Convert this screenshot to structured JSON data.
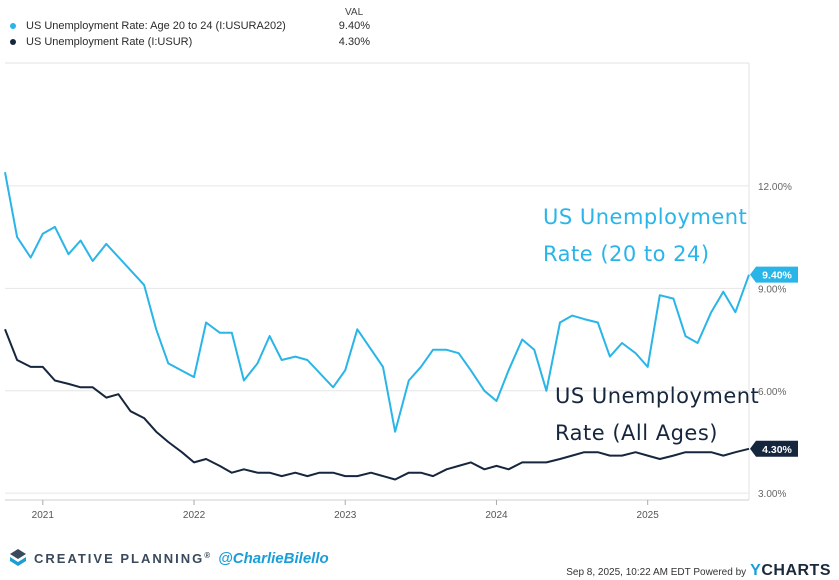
{
  "legend": {
    "header": "VAL",
    "series": [
      {
        "label": "US Unemployment Rate: Age 20 to 24 (I:USURA202)",
        "value": "9.40%",
        "color": "#29b5e8"
      },
      {
        "label": "US Unemployment Rate (I:USUR)",
        "value": "4.30%",
        "color": "#16263d"
      }
    ]
  },
  "chart_data": {
    "type": "line",
    "x_ticks": [
      "2021",
      "2022",
      "2023",
      "2024",
      "2025"
    ],
    "y_ticks": [
      "3.00%",
      "6.00%",
      "9.00%",
      "12.00%"
    ],
    "ylim": [
      2.8,
      15.6
    ],
    "xlim": [
      2020.75,
      2025.67
    ],
    "grid": true,
    "series": [
      {
        "name": "US Unemployment Rate: Age 20 to 24 (I:USURA202)",
        "color": "#29b5e8",
        "end_label": "9.40%",
        "annotation": [
          "US Unemployment",
          "Rate (20 to 24)"
        ],
        "points": [
          [
            2020.75,
            12.4
          ],
          [
            2020.83,
            10.5
          ],
          [
            2020.92,
            9.9
          ],
          [
            2021.0,
            10.6
          ],
          [
            2021.08,
            10.8
          ],
          [
            2021.17,
            10.0
          ],
          [
            2021.25,
            10.4
          ],
          [
            2021.33,
            9.8
          ],
          [
            2021.42,
            10.3
          ],
          [
            2021.67,
            9.1
          ],
          [
            2021.75,
            7.8
          ],
          [
            2021.83,
            6.8
          ],
          [
            2022.0,
            6.4
          ],
          [
            2022.08,
            8.0
          ],
          [
            2022.17,
            7.7
          ],
          [
            2022.25,
            7.7
          ],
          [
            2022.33,
            6.3
          ],
          [
            2022.42,
            6.8
          ],
          [
            2022.5,
            7.6
          ],
          [
            2022.58,
            6.9
          ],
          [
            2022.67,
            7.0
          ],
          [
            2022.75,
            6.9
          ],
          [
            2022.92,
            6.1
          ],
          [
            2023.0,
            6.6
          ],
          [
            2023.08,
            7.8
          ],
          [
            2023.25,
            6.7
          ],
          [
            2023.33,
            4.8
          ],
          [
            2023.42,
            6.3
          ],
          [
            2023.5,
            6.7
          ],
          [
            2023.58,
            7.2
          ],
          [
            2023.67,
            7.2
          ],
          [
            2023.75,
            7.1
          ],
          [
            2023.83,
            6.6
          ],
          [
            2023.92,
            6.0
          ],
          [
            2024.0,
            5.7
          ],
          [
            2024.08,
            6.6
          ],
          [
            2024.17,
            7.5
          ],
          [
            2024.25,
            7.2
          ],
          [
            2024.33,
            6.0
          ],
          [
            2024.42,
            8.0
          ],
          [
            2024.5,
            8.2
          ],
          [
            2024.58,
            8.1
          ],
          [
            2024.67,
            8.0
          ],
          [
            2024.75,
            7.0
          ],
          [
            2024.83,
            7.4
          ],
          [
            2024.92,
            7.1
          ],
          [
            2025.0,
            6.7
          ],
          [
            2025.08,
            8.8
          ],
          [
            2025.17,
            8.7
          ],
          [
            2025.25,
            7.6
          ],
          [
            2025.33,
            7.4
          ],
          [
            2025.42,
            8.3
          ],
          [
            2025.5,
            8.9
          ],
          [
            2025.58,
            8.3
          ],
          [
            2025.67,
            9.4
          ]
        ]
      },
      {
        "name": "US Unemployment Rate (I:USUR)",
        "color": "#16263d",
        "end_label": "4.30%",
        "annotation": [
          "US Unemployment",
          "Rate (All Ages)"
        ],
        "points": [
          [
            2020.75,
            7.8
          ],
          [
            2020.83,
            6.9
          ],
          [
            2020.92,
            6.7
          ],
          [
            2021.0,
            6.7
          ],
          [
            2021.08,
            6.3
          ],
          [
            2021.17,
            6.2
          ],
          [
            2021.25,
            6.1
          ],
          [
            2021.33,
            6.1
          ],
          [
            2021.42,
            5.8
          ],
          [
            2021.5,
            5.9
          ],
          [
            2021.58,
            5.4
          ],
          [
            2021.67,
            5.2
          ],
          [
            2021.75,
            4.8
          ],
          [
            2021.83,
            4.5
          ],
          [
            2021.92,
            4.2
          ],
          [
            2022.0,
            3.9
          ],
          [
            2022.08,
            4.0
          ],
          [
            2022.17,
            3.8
          ],
          [
            2022.25,
            3.6
          ],
          [
            2022.33,
            3.7
          ],
          [
            2022.42,
            3.6
          ],
          [
            2022.5,
            3.6
          ],
          [
            2022.58,
            3.5
          ],
          [
            2022.67,
            3.6
          ],
          [
            2022.75,
            3.5
          ],
          [
            2022.83,
            3.6
          ],
          [
            2022.92,
            3.6
          ],
          [
            2023.0,
            3.5
          ],
          [
            2023.08,
            3.5
          ],
          [
            2023.17,
            3.6
          ],
          [
            2023.25,
            3.5
          ],
          [
            2023.33,
            3.4
          ],
          [
            2023.42,
            3.6
          ],
          [
            2023.5,
            3.6
          ],
          [
            2023.58,
            3.5
          ],
          [
            2023.67,
            3.7
          ],
          [
            2023.75,
            3.8
          ],
          [
            2023.83,
            3.9
          ],
          [
            2023.92,
            3.7
          ],
          [
            2024.0,
            3.8
          ],
          [
            2024.08,
            3.7
          ],
          [
            2024.17,
            3.9
          ],
          [
            2024.25,
            3.9
          ],
          [
            2024.33,
            3.9
          ],
          [
            2024.42,
            4.0
          ],
          [
            2024.5,
            4.1
          ],
          [
            2024.58,
            4.2
          ],
          [
            2024.67,
            4.2
          ],
          [
            2024.75,
            4.1
          ],
          [
            2024.83,
            4.1
          ],
          [
            2024.92,
            4.2
          ],
          [
            2025.0,
            4.1
          ],
          [
            2025.08,
            4.0
          ],
          [
            2025.17,
            4.1
          ],
          [
            2025.25,
            4.2
          ],
          [
            2025.33,
            4.2
          ],
          [
            2025.42,
            4.2
          ],
          [
            2025.5,
            4.1
          ],
          [
            2025.58,
            4.2
          ],
          [
            2025.67,
            4.3
          ]
        ]
      }
    ]
  },
  "footer": {
    "brand": "CREATIVE PLANNING",
    "brand_mark": "®",
    "handle": "@CharlieBilello",
    "timestamp": "Sep 8, 2025, 10:22 AM EDT Powered by",
    "ycharts_y": "Y",
    "ycharts_rest": "CHARTS"
  }
}
